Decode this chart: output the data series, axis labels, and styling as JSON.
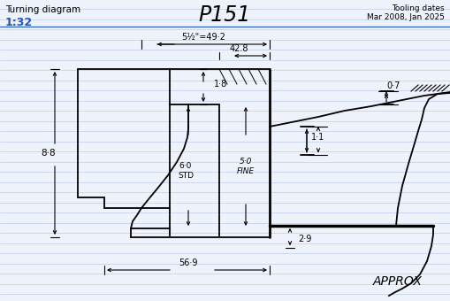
{
  "title": "P151",
  "subtitle_left": "Turning diagram",
  "scale": "1:32",
  "subtitle_right": "Tooling dates\nMar 2008, Jan 2025",
  "approx": "APPROX",
  "bg_color": "#eef2fa",
  "line_color": "#000000",
  "ruled_color": "#c0cce8",
  "blue_color": "#2255bb",
  "dims": {
    "d1": "5½\"=49·2",
    "d2": "42.8",
    "d3": "1·1",
    "d4": "0·7",
    "d5": "8·8",
    "d6": "1·8",
    "d7": "6·0\nSTD",
    "d8": "5·0\nFINE",
    "d9": "2·9",
    "d10": "56·9"
  }
}
